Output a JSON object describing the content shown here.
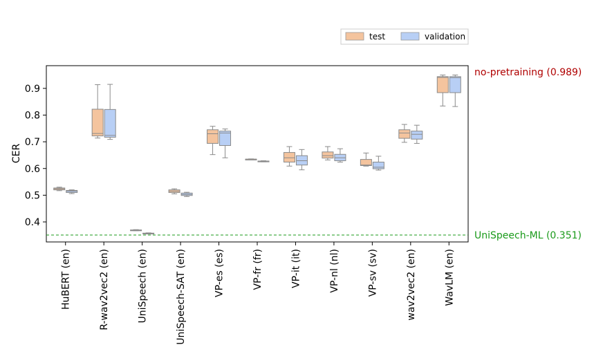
{
  "chart_data": {
    "type": "boxplot",
    "ylabel": "CER",
    "ylim": [
      0.325,
      0.985
    ],
    "yticks": [
      0.4,
      0.5,
      0.6,
      0.7,
      0.8,
      0.9
    ],
    "categories": [
      "HuBERT (en)",
      "R-wav2vec2 (en)",
      "UniSpeech (en)",
      "UniSpeech-SAT (en)",
      "VP-es (es)",
      "VP-fr (fr)",
      "VP-it (it)",
      "VP-nl (nl)",
      "VP-sv (sv)",
      "wav2vec2 (en)",
      "WavLM (en)"
    ],
    "legend_position": "top-right",
    "series": [
      {
        "name": "test",
        "color": "#f4c49e",
        "boxes": [
          {
            "whislo": 0.517,
            "q1": 0.52,
            "med": 0.524,
            "q3": 0.527,
            "whishi": 0.53
          },
          {
            "whislo": 0.714,
            "q1": 0.722,
            "med": 0.731,
            "q3": 0.822,
            "whishi": 0.914
          },
          {
            "whislo": 0.367,
            "q1": 0.368,
            "med": 0.369,
            "q3": 0.37,
            "whishi": 0.371
          },
          {
            "whislo": 0.505,
            "q1": 0.51,
            "med": 0.515,
            "q3": 0.52,
            "whishi": 0.524
          },
          {
            "whislo": 0.652,
            "q1": 0.694,
            "med": 0.73,
            "q3": 0.745,
            "whishi": 0.758
          },
          {
            "whislo": 0.634,
            "q1": 0.634,
            "med": 0.635,
            "q3": 0.635,
            "whishi": 0.636
          },
          {
            "whislo": 0.609,
            "q1": 0.624,
            "med": 0.64,
            "q3": 0.66,
            "whishi": 0.682
          },
          {
            "whislo": 0.632,
            "q1": 0.639,
            "med": 0.648,
            "q3": 0.662,
            "whishi": 0.682
          },
          {
            "whislo": 0.609,
            "q1": 0.611,
            "med": 0.613,
            "q3": 0.634,
            "whishi": 0.658
          },
          {
            "whislo": 0.698,
            "q1": 0.713,
            "med": 0.733,
            "q3": 0.745,
            "whishi": 0.765
          },
          {
            "whislo": 0.834,
            "q1": 0.884,
            "med": 0.941,
            "q3": 0.944,
            "whishi": 0.95
          }
        ]
      },
      {
        "name": "validation",
        "color": "#b8cff5",
        "boxes": [
          {
            "whislo": 0.506,
            "q1": 0.51,
            "med": 0.515,
            "q3": 0.518,
            "whishi": 0.52
          },
          {
            "whislo": 0.709,
            "q1": 0.717,
            "med": 0.724,
            "q3": 0.821,
            "whishi": 0.915
          },
          {
            "whislo": 0.355,
            "q1": 0.356,
            "med": 0.357,
            "q3": 0.358,
            "whishi": 0.359
          },
          {
            "whislo": 0.495,
            "q1": 0.499,
            "med": 0.503,
            "q3": 0.508,
            "whishi": 0.511
          },
          {
            "whislo": 0.64,
            "q1": 0.686,
            "med": 0.733,
            "q3": 0.74,
            "whishi": 0.748
          },
          {
            "whislo": 0.625,
            "q1": 0.626,
            "med": 0.627,
            "q3": 0.628,
            "whishi": 0.629
          },
          {
            "whislo": 0.595,
            "q1": 0.613,
            "med": 0.629,
            "q3": 0.648,
            "whishi": 0.671
          },
          {
            "whislo": 0.624,
            "q1": 0.629,
            "med": 0.64,
            "q3": 0.653,
            "whishi": 0.674
          },
          {
            "whislo": 0.594,
            "q1": 0.599,
            "med": 0.605,
            "q3": 0.624,
            "whishi": 0.646
          },
          {
            "whislo": 0.694,
            "q1": 0.71,
            "med": 0.728,
            "q3": 0.74,
            "whishi": 0.762
          },
          {
            "whislo": 0.832,
            "q1": 0.884,
            "med": 0.94,
            "q3": 0.944,
            "whishi": 0.95
          }
        ]
      }
    ],
    "reference_lines": [
      {
        "label": "no-pretraining (0.989)",
        "value": 0.989,
        "color": "#b00000",
        "line_visible": false
      },
      {
        "label": "UniSpeech-ML (0.351)",
        "value": 0.351,
        "color": "#1a9a1a",
        "line_visible": true,
        "dashed": true
      }
    ]
  }
}
